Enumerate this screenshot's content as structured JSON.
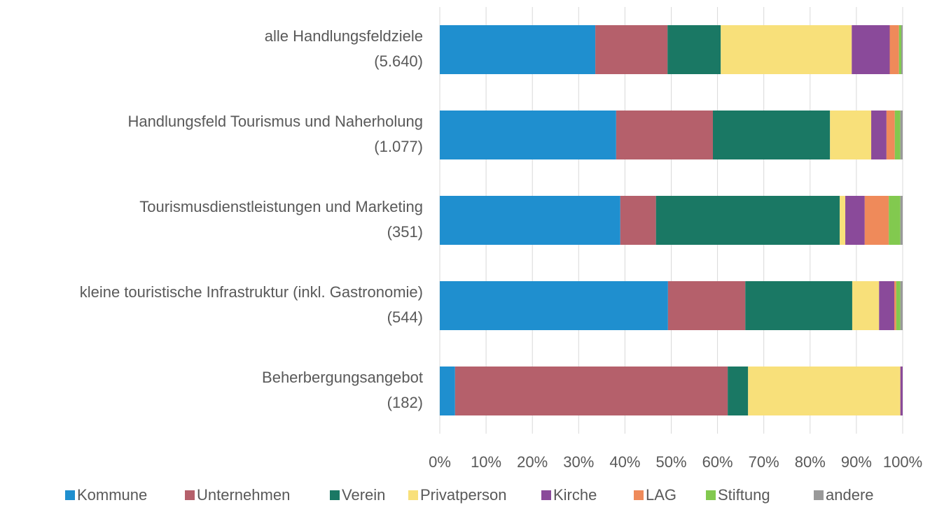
{
  "chart_data": {
    "type": "stacked-bar-horizontal",
    "categories": [
      [
        "alle Handlungsfeldziele",
        "(5.640)"
      ],
      [
        "Handlungsfeld Tourismus und Naherholung",
        "(1.077)"
      ],
      [
        "Tourismusdienstleistungen und Marketing",
        "(351)"
      ],
      [
        "kleine touristische Infrastruktur (inkl. Gastronomie)",
        "(544)"
      ],
      [
        "Beherbergungsangebot",
        "(182)"
      ]
    ],
    "series": [
      {
        "name": "Kommune",
        "color": "#1f8fcf",
        "values": [
          33.6,
          38.1,
          39.0,
          49.3,
          3.3
        ]
      },
      {
        "name": "Unternehmen",
        "color": "#b5606b",
        "values": [
          15.6,
          20.9,
          7.7,
          16.7,
          58.9
        ]
      },
      {
        "name": "Verein",
        "color": "#1a7864",
        "values": [
          11.5,
          25.3,
          39.7,
          23.1,
          4.4
        ]
      },
      {
        "name": "Privatperson",
        "color": "#f8e07a",
        "values": [
          28.3,
          8.9,
          1.2,
          5.8,
          32.9
        ]
      },
      {
        "name": "Kirche",
        "color": "#8a4a9a",
        "values": [
          8.2,
          3.3,
          4.2,
          3.3,
          0.5
        ]
      },
      {
        "name": "LAG",
        "color": "#ef8a5a",
        "values": [
          2.0,
          1.8,
          5.2,
          0.4,
          0
        ]
      },
      {
        "name": "Stiftung",
        "color": "#82c94f",
        "values": [
          0.5,
          1.2,
          2.5,
          0.9,
          0
        ]
      },
      {
        "name": "andere",
        "color": "#999999",
        "values": [
          0.3,
          0.5,
          0.5,
          0.5,
          0
        ]
      }
    ],
    "xlim": [
      0,
      100
    ],
    "xticks": [
      {
        "value": 0,
        "label": "0%"
      },
      {
        "value": 10,
        "label": "10%"
      },
      {
        "value": 20,
        "label": "20%"
      },
      {
        "value": 30,
        "label": "30%"
      },
      {
        "value": 40,
        "label": "40%"
      },
      {
        "value": 50,
        "label": "50%"
      },
      {
        "value": 60,
        "label": "60%"
      },
      {
        "value": 70,
        "label": "70%"
      },
      {
        "value": 80,
        "label": "80%"
      },
      {
        "value": 90,
        "label": "90%"
      },
      {
        "value": 100,
        "label": "100%"
      }
    ],
    "grid": true,
    "legend": "bottom"
  }
}
